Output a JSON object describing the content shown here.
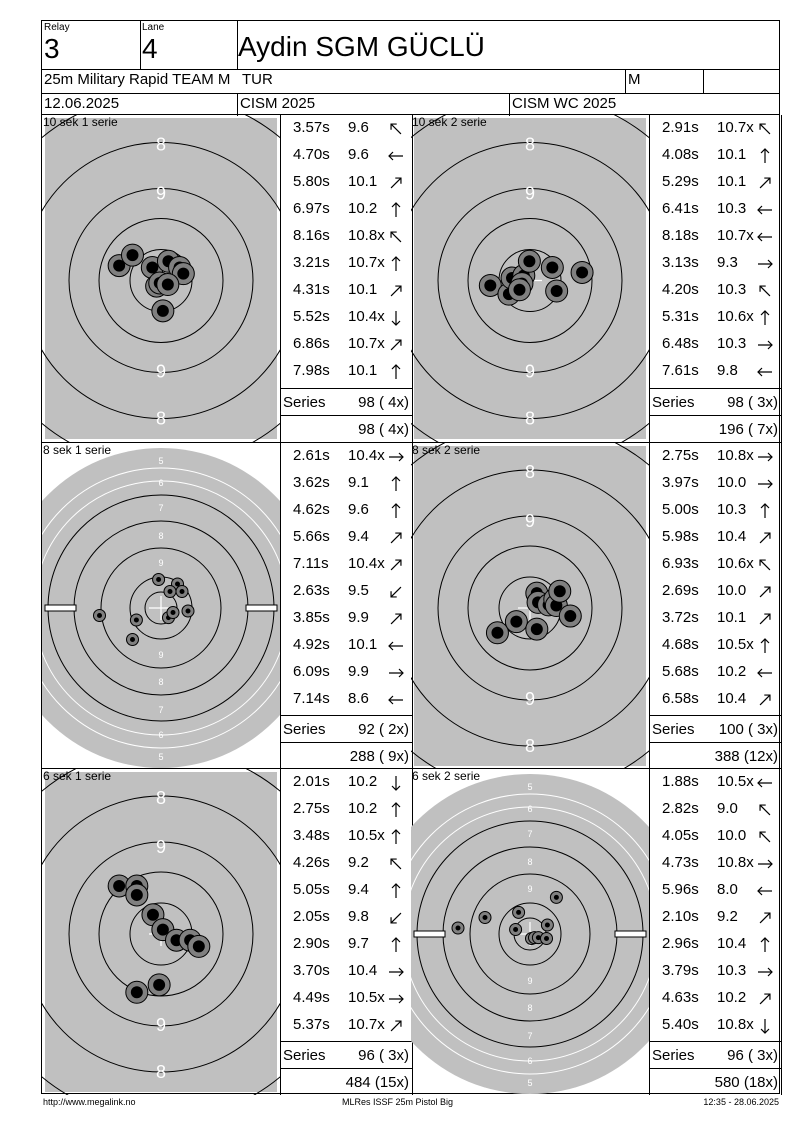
{
  "header": {
    "relay_label": "Relay",
    "relay": "3",
    "lane_label": "Lane",
    "lane": "4",
    "name": "Aydin SGM GÜCLÜ",
    "event": "25m Military Rapid TEAM M",
    "nation": "TUR",
    "gender": "M",
    "date": "12.06.2025",
    "competition": "CISM 2025",
    "venue": "CISM WC 2025"
  },
  "series": [
    {
      "title": "10 sek 1 serie",
      "type": "normal",
      "total_label": "Series",
      "series_total": "98 ( 4x)",
      "cumulative": "98 ( 4x)",
      "shots": [
        {
          "time": "3.57s",
          "value": "9.6",
          "arrow": "arrow-nw"
        },
        {
          "time": "4.70s",
          "value": "9.6",
          "arrow": "arrow-w"
        },
        {
          "time": "5.80s",
          "value": "10.1",
          "arrow": "arrow-ne"
        },
        {
          "time": "6.97s",
          "value": "10.2",
          "arrow": "arrow-n"
        },
        {
          "time": "8.16s",
          "value": "10.8x",
          "arrow": "arrow-nw"
        },
        {
          "time": "3.21s",
          "value": "10.7x",
          "arrow": "arrow-n"
        },
        {
          "time": "4.31s",
          "value": "10.1",
          "arrow": "arrow-ne"
        },
        {
          "time": "5.52s",
          "value": "10.4x",
          "arrow": "arrow-s"
        },
        {
          "time": "6.86s",
          "value": "10.7x",
          "arrow": "arrow-ne"
        },
        {
          "time": "7.98s",
          "value": "10.1",
          "arrow": "arrow-n"
        }
      ],
      "holes": [
        [
          -1.35,
          -0.48
        ],
        [
          -0.92,
          -0.82
        ],
        [
          -0.28,
          -0.42
        ],
        [
          0.24,
          -0.62
        ],
        [
          0.6,
          -0.42
        ],
        [
          0.72,
          -0.22
        ],
        [
          -0.14,
          0.18
        ],
        [
          -0.04,
          0.08
        ],
        [
          0.22,
          0.13
        ],
        [
          0.06,
          0.98
        ]
      ]
    },
    {
      "title": "10 sek 2 serie",
      "type": "normal",
      "total_label": "Series",
      "series_total": "98 ( 3x)",
      "cumulative": "196 ( 7x)",
      "shots": [
        {
          "time": "2.91s",
          "value": "10.7x",
          "arrow": "arrow-nw"
        },
        {
          "time": "4.08s",
          "value": "10.1",
          "arrow": "arrow-n"
        },
        {
          "time": "5.29s",
          "value": "10.1",
          "arrow": "arrow-ne"
        },
        {
          "time": "6.41s",
          "value": "10.3",
          "arrow": "arrow-w"
        },
        {
          "time": "8.18s",
          "value": "10.7x",
          "arrow": "arrow-w"
        },
        {
          "time": "3.13s",
          "value": "9.3",
          "arrow": "arrow-e"
        },
        {
          "time": "4.20s",
          "value": "10.3",
          "arrow": "arrow-nw"
        },
        {
          "time": "5.31s",
          "value": "10.6x",
          "arrow": "arrow-n"
        },
        {
          "time": "6.48s",
          "value": "10.3",
          "arrow": "arrow-e"
        },
        {
          "time": "7.61s",
          "value": "9.8",
          "arrow": "arrow-w"
        }
      ],
      "holes": [
        [
          -1.28,
          0.16
        ],
        [
          -0.68,
          0.44
        ],
        [
          -0.58,
          -0.08
        ],
        [
          -0.2,
          -0.16
        ],
        [
          -0.26,
          0.1
        ],
        [
          -0.34,
          0.3
        ],
        [
          -0.02,
          -0.62
        ],
        [
          0.72,
          -0.42
        ],
        [
          0.86,
          0.34
        ],
        [
          1.68,
          -0.26
        ]
      ]
    },
    {
      "title": "8 sek 1 serie",
      "type": "small",
      "total_label": "Series",
      "series_total": "92 ( 2x)",
      "cumulative": "288 ( 9x)",
      "shots": [
        {
          "time": "2.61s",
          "value": "10.4x",
          "arrow": "arrow-e"
        },
        {
          "time": "3.62s",
          "value": "9.1",
          "arrow": "arrow-n"
        },
        {
          "time": "4.62s",
          "value": "9.6",
          "arrow": "arrow-n"
        },
        {
          "time": "5.66s",
          "value": "9.4",
          "arrow": "arrow-ne"
        },
        {
          "time": "7.11s",
          "value": "10.4x",
          "arrow": "arrow-ne"
        },
        {
          "time": "2.63s",
          "value": "9.5",
          "arrow": "arrow-sw"
        },
        {
          "time": "3.85s",
          "value": "9.9",
          "arrow": "arrow-ne"
        },
        {
          "time": "4.92s",
          "value": "10.1",
          "arrow": "arrow-w"
        },
        {
          "time": "6.09s",
          "value": "9.9",
          "arrow": "arrow-e"
        },
        {
          "time": "7.14s",
          "value": "8.6",
          "arrow": "arrow-w"
        }
      ],
      "holes": [
        [
          -2.05,
          0.25
        ],
        [
          -0.82,
          0.4
        ],
        [
          -0.95,
          1.05
        ],
        [
          -0.08,
          -0.95
        ],
        [
          0.55,
          -0.8
        ],
        [
          0.7,
          -0.55
        ],
        [
          0.3,
          -0.55
        ],
        [
          0.25,
          0.32
        ],
        [
          0.4,
          0.15
        ],
        [
          0.9,
          0.1
        ]
      ]
    },
    {
      "title": "8 sek 2 serie",
      "type": "normal",
      "total_label": "Series",
      "series_total": "100 ( 3x)",
      "cumulative": "388 (12x)",
      "shots": [
        {
          "time": "2.75s",
          "value": "10.8x",
          "arrow": "arrow-e"
        },
        {
          "time": "3.97s",
          "value": "10.0",
          "arrow": "arrow-e"
        },
        {
          "time": "5.00s",
          "value": "10.3",
          "arrow": "arrow-n"
        },
        {
          "time": "5.98s",
          "value": "10.4",
          "arrow": "arrow-ne"
        },
        {
          "time": "6.93s",
          "value": "10.6x",
          "arrow": "arrow-nw"
        },
        {
          "time": "2.69s",
          "value": "10.0",
          "arrow": "arrow-ne"
        },
        {
          "time": "3.72s",
          "value": "10.1",
          "arrow": "arrow-ne"
        },
        {
          "time": "4.68s",
          "value": "10.5x",
          "arrow": "arrow-n"
        },
        {
          "time": "5.68s",
          "value": "10.2",
          "arrow": "arrow-w"
        },
        {
          "time": "6.58s",
          "value": "10.4",
          "arrow": "arrow-ne"
        }
      ],
      "holes": [
        [
          -1.05,
          0.8
        ],
        [
          -0.44,
          0.44
        ],
        [
          0.22,
          0.68
        ],
        [
          0.22,
          -0.48
        ],
        [
          0.26,
          -0.18
        ],
        [
          0.6,
          -0.1
        ],
        [
          0.8,
          -0.28
        ],
        [
          0.85,
          -0.08
        ],
        [
          0.96,
          -0.54
        ],
        [
          1.3,
          0.26
        ]
      ]
    },
    {
      "title": "6 sek 1 serie",
      "type": "normal",
      "total_label": "Series",
      "series_total": "96 ( 3x)",
      "cumulative": "484 (15x)",
      "shots": [
        {
          "time": "2.01s",
          "value": "10.2",
          "arrow": "arrow-s"
        },
        {
          "time": "2.75s",
          "value": "10.2",
          "arrow": "arrow-n"
        },
        {
          "time": "3.48s",
          "value": "10.5x",
          "arrow": "arrow-n"
        },
        {
          "time": "4.26s",
          "value": "9.2",
          "arrow": "arrow-nw"
        },
        {
          "time": "5.05s",
          "value": "9.4",
          "arrow": "arrow-n"
        },
        {
          "time": "2.05s",
          "value": "9.8",
          "arrow": "arrow-sw"
        },
        {
          "time": "2.90s",
          "value": "9.7",
          "arrow": "arrow-n"
        },
        {
          "time": "3.70s",
          "value": "10.4",
          "arrow": "arrow-e"
        },
        {
          "time": "4.49s",
          "value": "10.5x",
          "arrow": "arrow-e"
        },
        {
          "time": "5.37s",
          "value": "10.7x",
          "arrow": "arrow-ne"
        }
      ],
      "holes": [
        [
          -1.35,
          -1.55
        ],
        [
          -0.78,
          -1.55
        ],
        [
          -0.78,
          -1.26
        ],
        [
          -0.26,
          -0.62
        ],
        [
          0.06,
          -0.14
        ],
        [
          0.5,
          0.2
        ],
        [
          0.94,
          0.2
        ],
        [
          1.22,
          0.4
        ],
        [
          -0.06,
          1.64
        ],
        [
          -0.78,
          1.88
        ]
      ]
    },
    {
      "title": "6 sek 2 serie",
      "type": "small",
      "total_label": "Series",
      "series_total": "96 ( 3x)",
      "cumulative": "580 (18x)",
      "shots": [
        {
          "time": "1.88s",
          "value": "10.5x",
          "arrow": "arrow-w"
        },
        {
          "time": "2.82s",
          "value": "9.0",
          "arrow": "arrow-nw"
        },
        {
          "time": "4.05s",
          "value": "10.0",
          "arrow": "arrow-nw"
        },
        {
          "time": "4.73s",
          "value": "10.8x",
          "arrow": "arrow-e"
        },
        {
          "time": "5.96s",
          "value": "8.0",
          "arrow": "arrow-w"
        },
        {
          "time": "2.10s",
          "value": "9.2",
          "arrow": "arrow-ne"
        },
        {
          "time": "2.96s",
          "value": "10.4",
          "arrow": "arrow-n"
        },
        {
          "time": "3.79s",
          "value": "10.3",
          "arrow": "arrow-e"
        },
        {
          "time": "4.63s",
          "value": "10.2",
          "arrow": "arrow-ne"
        },
        {
          "time": "5.40s",
          "value": "10.8x",
          "arrow": "arrow-s"
        }
      ],
      "holes": [
        [
          -2.4,
          -0.2
        ],
        [
          -1.5,
          -0.55
        ],
        [
          -0.38,
          -0.72
        ],
        [
          -0.48,
          -0.15
        ],
        [
          0.05,
          0.15
        ],
        [
          0.15,
          0.12
        ],
        [
          0.28,
          0.12
        ],
        [
          0.58,
          -0.3
        ],
        [
          0.55,
          0.15
        ],
        [
          0.88,
          -1.22
        ]
      ]
    }
  ],
  "footer": {
    "left": "http://www.megalink.no",
    "center": "MLRes ISSF 25m Pistol Big",
    "right": "12:35 - 28.06.2025"
  },
  "colors": {
    "target_grey": "#c0c0c0",
    "hole_grey": "#808080"
  }
}
